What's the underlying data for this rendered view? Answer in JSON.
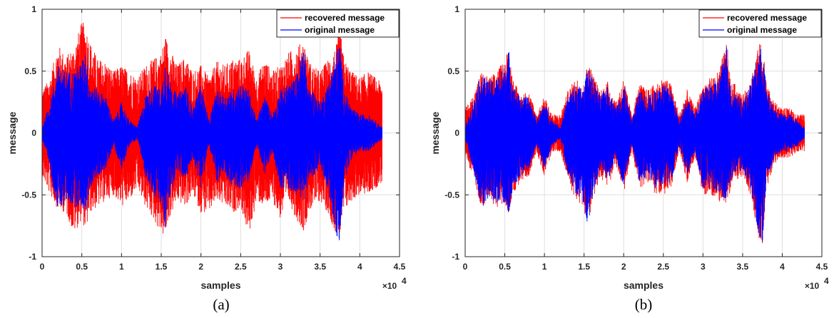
{
  "colors": {
    "recovered": "#ff0000",
    "original": "#0000ff",
    "grid": "#dfdfdf",
    "axis": "#262626"
  },
  "chart_data": [
    {
      "type": "line",
      "panel_label": "(a)",
      "xlabel": "samples",
      "ylabel": "message",
      "x_exponent_label": "×10",
      "x_exponent_power": "4",
      "xlim": [
        0,
        45000
      ],
      "ylim": [
        -1,
        1
      ],
      "x_ticks": [
        0,
        5000,
        10000,
        15000,
        20000,
        25000,
        30000,
        35000,
        40000,
        45000
      ],
      "x_tick_labels": [
        "0",
        "0.5",
        "1",
        "1.5",
        "2",
        "2.5",
        "3",
        "3.5",
        "4",
        "4.5"
      ],
      "y_ticks": [
        -1,
        -0.5,
        0,
        0.5,
        1
      ],
      "y_tick_labels": [
        "-1",
        "-0.5",
        "0",
        "0.5",
        "1"
      ],
      "grid": true,
      "legend_position": "top-right",
      "series": [
        {
          "name": "recovered message",
          "color": "#ff0000",
          "x": [
            0,
            1000,
            2000,
            3000,
            4000,
            5000,
            5500,
            6000,
            7000,
            8000,
            9000,
            10000,
            11000,
            12000,
            13000,
            14000,
            15000,
            15500,
            16000,
            17000,
            18000,
            19000,
            20000,
            21000,
            22000,
            23000,
            24000,
            25000,
            26000,
            27000,
            28000,
            29000,
            30000,
            31000,
            32000,
            33000,
            33500,
            34000,
            35000,
            36000,
            37000,
            37500,
            38000,
            39000,
            40000,
            41000,
            42000,
            42800
          ],
          "upper": [
            0.35,
            0.45,
            0.72,
            0.62,
            0.7,
            0.9,
            0.88,
            0.75,
            0.6,
            0.58,
            0.5,
            0.55,
            0.5,
            0.45,
            0.55,
            0.6,
            0.65,
            0.8,
            0.7,
            0.55,
            0.62,
            0.5,
            0.55,
            0.45,
            0.58,
            0.55,
            0.6,
            0.6,
            0.68,
            0.45,
            0.6,
            0.5,
            0.55,
            0.65,
            0.7,
            0.75,
            0.6,
            0.55,
            0.5,
            0.6,
            0.7,
            0.85,
            0.6,
            0.5,
            0.45,
            0.5,
            0.45,
            0.4
          ],
          "lower": [
            -0.35,
            -0.5,
            -0.62,
            -0.65,
            -0.82,
            -0.7,
            -0.8,
            -0.65,
            -0.6,
            -0.55,
            -0.5,
            -0.6,
            -0.55,
            -0.45,
            -0.6,
            -0.7,
            -0.82,
            -0.85,
            -0.7,
            -0.55,
            -0.6,
            -0.5,
            -0.65,
            -0.65,
            -0.55,
            -0.6,
            -0.65,
            -0.6,
            -0.84,
            -0.55,
            -0.6,
            -0.55,
            -0.7,
            -0.55,
            -0.7,
            -0.8,
            -0.65,
            -0.6,
            -0.55,
            -0.65,
            -0.82,
            -0.85,
            -0.65,
            -0.55,
            -0.5,
            -0.5,
            -0.45,
            -0.4
          ]
        },
        {
          "name": "original message",
          "color": "#0000ff",
          "x": [
            0,
            1000,
            2000,
            3000,
            4000,
            5000,
            5500,
            6000,
            7000,
            8000,
            9000,
            10000,
            11000,
            12000,
            13000,
            14000,
            15000,
            15500,
            16000,
            17000,
            18000,
            19000,
            20000,
            21000,
            22000,
            23000,
            24000,
            25000,
            26000,
            27000,
            28000,
            29000,
            30000,
            31000,
            32000,
            33000,
            33500,
            34000,
            35000,
            36000,
            37000,
            37500,
            38000,
            39000,
            40000,
            41000,
            42000,
            42800
          ],
          "upper": [
            0.05,
            0.25,
            0.55,
            0.5,
            0.5,
            0.58,
            0.68,
            0.4,
            0.35,
            0.3,
            0.1,
            0.25,
            0.1,
            0.05,
            0.3,
            0.4,
            0.35,
            0.6,
            0.45,
            0.3,
            0.4,
            0.2,
            0.4,
            0.1,
            0.35,
            0.3,
            0.35,
            0.4,
            0.35,
            0.1,
            0.3,
            0.15,
            0.35,
            0.4,
            0.45,
            0.75,
            0.35,
            0.35,
            0.25,
            0.4,
            0.65,
            0.75,
            0.35,
            0.2,
            0.15,
            0.15,
            0.1,
            0.05
          ],
          "lower": [
            -0.05,
            -0.3,
            -0.65,
            -0.55,
            -0.6,
            -0.6,
            -0.66,
            -0.45,
            -0.35,
            -0.3,
            -0.1,
            -0.3,
            -0.1,
            -0.05,
            -0.35,
            -0.5,
            -0.6,
            -0.8,
            -0.55,
            -0.3,
            -0.4,
            -0.2,
            -0.45,
            -0.1,
            -0.4,
            -0.35,
            -0.45,
            -0.45,
            -0.4,
            -0.1,
            -0.35,
            -0.15,
            -0.45,
            -0.45,
            -0.5,
            -0.55,
            -0.4,
            -0.35,
            -0.3,
            -0.45,
            -0.85,
            -0.9,
            -0.4,
            -0.2,
            -0.15,
            -0.15,
            -0.1,
            -0.05
          ]
        }
      ],
      "legend": [
        "recovered message",
        "original message"
      ]
    },
    {
      "type": "line",
      "panel_label": "(b)",
      "xlabel": "samples",
      "ylabel": "message",
      "x_exponent_label": "×10",
      "x_exponent_power": "4",
      "xlim": [
        0,
        45000
      ],
      "ylim": [
        -1,
        1
      ],
      "x_ticks": [
        0,
        5000,
        10000,
        15000,
        20000,
        25000,
        30000,
        35000,
        40000,
        45000
      ],
      "x_tick_labels": [
        "0",
        "0.5",
        "1",
        "1.5",
        "2",
        "2.5",
        "3",
        "3.5",
        "4",
        "4.5"
      ],
      "y_ticks": [
        -1,
        -0.5,
        0,
        0.5,
        1
      ],
      "y_tick_labels": [
        "-1",
        "-0.5",
        "0",
        "0.5",
        "1"
      ],
      "grid": true,
      "legend_position": "top-right",
      "series": [
        {
          "name": "recovered message",
          "color": "#ff0000",
          "x": [
            0,
            1000,
            2000,
            3000,
            4000,
            5000,
            5500,
            6000,
            7000,
            8000,
            9000,
            10000,
            11000,
            12000,
            13000,
            14000,
            15000,
            15500,
            16000,
            17000,
            18000,
            19000,
            20000,
            21000,
            22000,
            23000,
            24000,
            25000,
            26000,
            27000,
            28000,
            29000,
            30000,
            31000,
            32000,
            33000,
            33500,
            34000,
            35000,
            36000,
            37000,
            37500,
            38000,
            39000,
            40000,
            41000,
            42000,
            42800
          ],
          "upper": [
            0.2,
            0.3,
            0.5,
            0.45,
            0.5,
            0.6,
            0.7,
            0.45,
            0.3,
            0.35,
            0.15,
            0.3,
            0.15,
            0.15,
            0.35,
            0.45,
            0.4,
            0.6,
            0.5,
            0.35,
            0.42,
            0.25,
            0.45,
            0.15,
            0.4,
            0.35,
            0.4,
            0.45,
            0.4,
            0.15,
            0.35,
            0.2,
            0.4,
            0.45,
            0.5,
            0.75,
            0.4,
            0.4,
            0.3,
            0.45,
            0.7,
            0.78,
            0.4,
            0.25,
            0.2,
            0.2,
            0.15,
            0.15
          ],
          "lower": [
            -0.2,
            -0.35,
            -0.6,
            -0.55,
            -0.6,
            -0.6,
            -0.65,
            -0.5,
            -0.4,
            -0.35,
            -0.15,
            -0.35,
            -0.15,
            -0.15,
            -0.4,
            -0.55,
            -0.62,
            -0.8,
            -0.6,
            -0.35,
            -0.45,
            -0.25,
            -0.5,
            -0.15,
            -0.45,
            -0.4,
            -0.5,
            -0.5,
            -0.45,
            -0.15,
            -0.4,
            -0.2,
            -0.5,
            -0.5,
            -0.55,
            -0.6,
            -0.45,
            -0.4,
            -0.35,
            -0.5,
            -0.85,
            -0.9,
            -0.45,
            -0.25,
            -0.2,
            -0.2,
            -0.15,
            -0.15
          ]
        },
        {
          "name": "original message",
          "color": "#0000ff",
          "x": [
            0,
            1000,
            2000,
            3000,
            4000,
            5000,
            5500,
            6000,
            7000,
            8000,
            9000,
            10000,
            11000,
            12000,
            13000,
            14000,
            15000,
            15500,
            16000,
            17000,
            18000,
            19000,
            20000,
            21000,
            22000,
            23000,
            24000,
            25000,
            26000,
            27000,
            28000,
            29000,
            30000,
            31000,
            32000,
            33000,
            33500,
            34000,
            35000,
            36000,
            37000,
            37500,
            38000,
            39000,
            40000,
            41000,
            42000,
            42800
          ],
          "upper": [
            0.05,
            0.25,
            0.48,
            0.42,
            0.45,
            0.55,
            0.68,
            0.4,
            0.28,
            0.3,
            0.1,
            0.25,
            0.1,
            0.05,
            0.3,
            0.4,
            0.35,
            0.58,
            0.45,
            0.3,
            0.38,
            0.2,
            0.4,
            0.1,
            0.35,
            0.3,
            0.35,
            0.4,
            0.35,
            0.1,
            0.3,
            0.15,
            0.35,
            0.4,
            0.45,
            0.72,
            0.35,
            0.35,
            0.25,
            0.4,
            0.65,
            0.72,
            0.35,
            0.2,
            0.15,
            0.15,
            0.1,
            0.05
          ],
          "lower": [
            -0.05,
            -0.3,
            -0.62,
            -0.52,
            -0.58,
            -0.58,
            -0.65,
            -0.45,
            -0.35,
            -0.3,
            -0.1,
            -0.3,
            -0.1,
            -0.05,
            -0.35,
            -0.5,
            -0.6,
            -0.78,
            -0.55,
            -0.3,
            -0.4,
            -0.2,
            -0.45,
            -0.1,
            -0.4,
            -0.35,
            -0.45,
            -0.45,
            -0.4,
            -0.1,
            -0.35,
            -0.15,
            -0.45,
            -0.45,
            -0.5,
            -0.55,
            -0.4,
            -0.35,
            -0.3,
            -0.45,
            -0.82,
            -0.9,
            -0.4,
            -0.2,
            -0.15,
            -0.15,
            -0.1,
            -0.05
          ]
        }
      ],
      "legend": [
        "recovered message",
        "original message"
      ]
    }
  ]
}
